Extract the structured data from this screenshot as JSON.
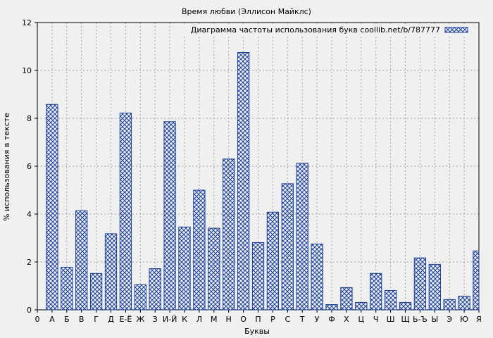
{
  "chart_data": {
    "type": "bar",
    "title": "Время любви (Эллисон Майклс)",
    "xlabel": "Буквы",
    "ylabel": "% использования в тексте",
    "legend": "Диаграмма частоты использования букв coollib.net/b/787777",
    "legend_position": "top-right",
    "grid": true,
    "ylim": [
      0,
      12
    ],
    "yticks": [
      0,
      2,
      4,
      6,
      8,
      10,
      12
    ],
    "xticks": [
      "0",
      "А",
      "Б",
      "В",
      "Г",
      "Д",
      "Е-Ё",
      "Ж",
      "З",
      "И-Й",
      "К",
      "Л",
      "М",
      "Н",
      "О",
      "П",
      "Р",
      "С",
      "Т",
      "У",
      "Ф",
      "Х",
      "Ц",
      "Ч",
      "Ш",
      "Щ",
      "Ь-Ъ",
      "Ы",
      "Э",
      "Ю",
      "Я"
    ],
    "categories": [
      "А",
      "Б",
      "В",
      "Г",
      "Д",
      "Е-Ё",
      "Ж",
      "З",
      "И-Й",
      "К",
      "Л",
      "М",
      "Н",
      "О",
      "П",
      "Р",
      "С",
      "Т",
      "У",
      "Ф",
      "Х",
      "Ц",
      "Ч",
      "Ш",
      "Щ",
      "Ь-Ъ",
      "Ы",
      "Э",
      "Ю",
      "Я"
    ],
    "values": [
      8.58,
      1.78,
      4.14,
      1.52,
      3.18,
      8.22,
      1.05,
      1.72,
      7.86,
      3.46,
      5.0,
      3.41,
      6.3,
      10.75,
      2.81,
      4.08,
      5.27,
      6.12,
      2.75,
      0.22,
      0.93,
      0.31,
      1.52,
      0.81,
      0.31,
      2.17,
      1.9,
      0.43,
      0.57,
      2.46
    ],
    "colors": {
      "bar_stroke": "#1a3f9a",
      "grid": "#a0a0a0",
      "background": "#f0f0f0"
    }
  }
}
